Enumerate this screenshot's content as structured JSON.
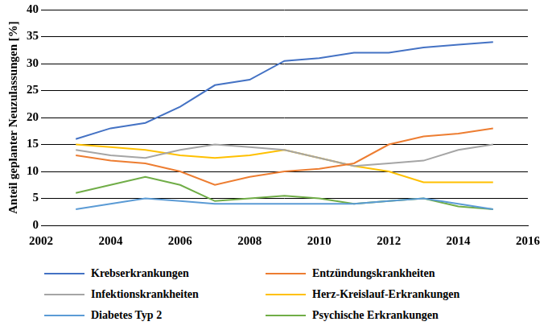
{
  "chart_data": {
    "type": "line",
    "y_label": "Anteil geplanter Neuzulassungen [%]",
    "x": [
      2003,
      2004,
      2005,
      2006,
      2007,
      2008,
      2009,
      2010,
      2011,
      2012,
      2013,
      2014,
      2015
    ],
    "series": [
      {
        "name": "Krebserkrankungen",
        "color": "#4472c4",
        "values": [
          16,
          18,
          19,
          22,
          26,
          27,
          30.5,
          31,
          32,
          32,
          33,
          33.5,
          34
        ]
      },
      {
        "name": "Entzündungskrankheiten",
        "color": "#ed7d31",
        "values": [
          13,
          12,
          11.5,
          10,
          7.5,
          9,
          10,
          10.5,
          11.5,
          15,
          16.5,
          17,
          18
        ]
      },
      {
        "name": "Infektionskrankheiten",
        "color": "#a5a5a5",
        "values": [
          14,
          13,
          12.5,
          14,
          15,
          14.5,
          14,
          12.5,
          11,
          11.5,
          12,
          14,
          15
        ]
      },
      {
        "name": "Herz-Kreislauf-Erkrankungen",
        "color": "#ffc000",
        "values": [
          15,
          14.5,
          14,
          13,
          12.5,
          13,
          14,
          12.5,
          11,
          10,
          8,
          8,
          8
        ]
      },
      {
        "name": "Diabetes Typ 2",
        "color": "#5b9bd5",
        "values": [
          3,
          4,
          5,
          4.5,
          4,
          4,
          4,
          4,
          4,
          4.5,
          5,
          4,
          3
        ]
      },
      {
        "name": "Psychische Erkrankungen",
        "color": "#70ad47",
        "values": [
          6,
          7.5,
          9,
          7.5,
          4.5,
          5,
          5.5,
          5,
          4,
          4.5,
          5,
          3.5,
          3
        ]
      }
    ],
    "xlim": [
      2002,
      2016
    ],
    "xticks": [
      2002,
      2004,
      2006,
      2008,
      2010,
      2012,
      2014,
      2016
    ],
    "ylim": [
      0,
      40
    ],
    "yticks": [
      0,
      5,
      10,
      15,
      20,
      25,
      30,
      35,
      40
    ],
    "grid": true,
    "legend": "bottom"
  }
}
